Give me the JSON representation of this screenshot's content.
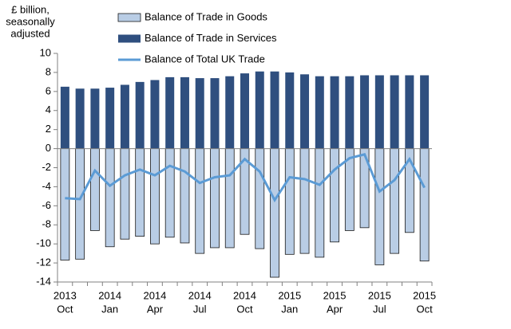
{
  "chart_data": {
    "type": "bar-line",
    "y_label": [
      "£ billion,",
      "seasonally",
      "adjusted"
    ],
    "categories": [
      [
        "2013",
        "Oct"
      ],
      null,
      null,
      [
        "2014",
        "Jan"
      ],
      null,
      null,
      [
        "2014",
        "Apr"
      ],
      null,
      null,
      [
        "2014",
        "Jul"
      ],
      null,
      null,
      [
        "2014",
        "Oct"
      ],
      null,
      null,
      [
        "2015",
        "Jan"
      ],
      null,
      null,
      [
        "2015",
        "Apr"
      ],
      null,
      null,
      [
        "2015",
        "Jul"
      ],
      null,
      null,
      [
        "2015",
        "Oct"
      ]
    ],
    "series": [
      {
        "name": "Balance of Trade in Goods",
        "type": "bar",
        "color": "#b9cde5",
        "values": [
          -11.7,
          -11.6,
          -8.6,
          -10.3,
          -9.5,
          -9.2,
          -10.0,
          -9.3,
          -9.9,
          -11.0,
          -10.4,
          -10.4,
          -9.0,
          -10.5,
          -13.5,
          -11.1,
          -11.0,
          -11.4,
          -9.8,
          -8.6,
          -8.3,
          -12.2,
          -11.0,
          -8.8,
          -11.8
        ]
      },
      {
        "name": "Balance of Trade in Services",
        "type": "bar",
        "color": "#2f4f7f",
        "values": [
          6.5,
          6.3,
          6.3,
          6.4,
          6.7,
          7.0,
          7.2,
          7.5,
          7.5,
          7.4,
          7.4,
          7.6,
          7.9,
          8.1,
          8.1,
          8.0,
          7.8,
          7.6,
          7.6,
          7.6,
          7.7,
          7.7,
          7.7,
          7.7,
          7.7
        ]
      },
      {
        "name": "Balance of Total UK Trade",
        "type": "line",
        "color": "#5b9bd5",
        "values": [
          -5.2,
          -5.3,
          -2.3,
          -3.9,
          -2.8,
          -2.2,
          -2.8,
          -1.8,
          -2.4,
          -3.6,
          -3.0,
          -2.8,
          -1.1,
          -2.4,
          -5.4,
          -3.0,
          -3.2,
          -3.8,
          -2.2,
          -1.0,
          -0.6,
          -4.5,
          -3.3,
          -1.1,
          -4.1
        ]
      }
    ],
    "ylim": [
      -14,
      10
    ],
    "yticks": [
      -14,
      -12,
      -10,
      -8,
      -6,
      -4,
      -2,
      0,
      2,
      4,
      6,
      8,
      10
    ],
    "grid": false
  }
}
